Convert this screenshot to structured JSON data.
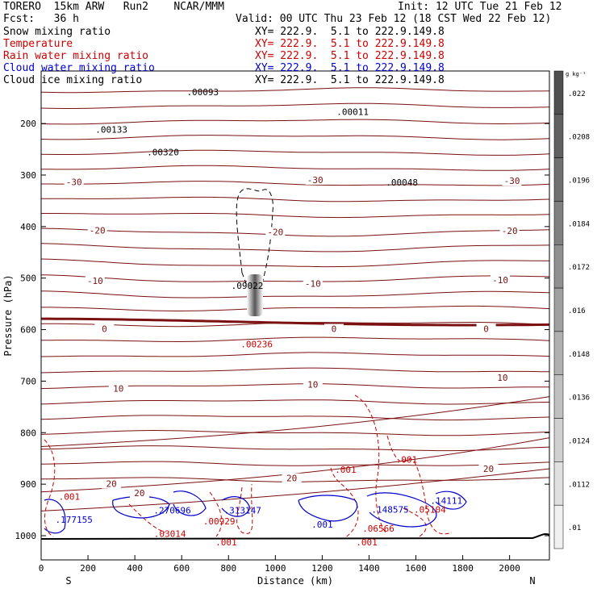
{
  "header": {
    "model_title": "TORERO  15km ARW   Run2    NCAR/MMM",
    "init": "Init: 12 UTC Tue 21 Feb 12",
    "fcst": "Fcst:   36 h",
    "valid": "Valid: 00 UTC Thu 23 Feb 12 (18 CST Wed 22 Feb 12)"
  },
  "legend": [
    {
      "label": "Snow mixing ratio",
      "xy": "",
      "color": "#000000"
    },
    {
      "label": "Temperature",
      "xy": "XY= 222.9.  5.1 to 222.9.149.8",
      "color": "#cc0000"
    },
    {
      "label": "Rain water mixing ratio",
      "xy": "XY= 222.9.  5.1 to 222.9.149.8",
      "color": "#cc0000"
    },
    {
      "label": "Cloud water mixing ratio",
      "xy": "XY= 222.9.  5.1 to 222.9.149.8",
      "color": "#0000cc"
    },
    {
      "label": "Cloud ice mixing ratio",
      "xy": "XY= 222.9.  5.1 to 222.9.149.8",
      "color": "#000000"
    }
  ],
  "snow_xy": "XY= 222.9.  5.1 to 222.9.149.8",
  "chart_data": {
    "type": "cross-section",
    "xlabel": "Distance (km)",
    "ylabel": "Pressure (hPa)",
    "xlim": [
      0,
      2170
    ],
    "ylim": [
      1050,
      100
    ],
    "x_ticks": [
      "0",
      "200",
      "400",
      "600",
      "800",
      "1000",
      "1200",
      "1400",
      "1600",
      "1800",
      "2000"
    ],
    "y_ticks": [
      "200",
      "300",
      "400",
      "500",
      "600",
      "700",
      "800",
      "900",
      "1000"
    ],
    "x_end_labels": {
      "left": "S",
      "right": "N"
    },
    "colorbar": {
      "unit": "g kg⁻¹",
      "ticks": [
        ".022",
        ".0208",
        ".0196",
        ".0184",
        ".0172",
        ".016",
        ".0148",
        ".0136",
        ".0124",
        ".0112",
        ".01"
      ]
    },
    "temperature_labels": [
      {
        "text": "-30",
        "x": 140,
        "p": 318
      },
      {
        "text": "-30",
        "x": 1170,
        "p": 314
      },
      {
        "text": "-30",
        "x": 2010,
        "p": 316
      },
      {
        "text": "-20",
        "x": 240,
        "p": 412
      },
      {
        "text": "-20",
        "x": 2000,
        "p": 413
      },
      {
        "text": "-20",
        "x": 1000,
        "p": 415
      },
      {
        "text": "-10",
        "x": 230,
        "p": 510
      },
      {
        "text": "-10",
        "x": 1160,
        "p": 515
      },
      {
        "text": "-10",
        "x": 1960,
        "p": 508
      },
      {
        "text": "0",
        "x": 270,
        "p": 603
      },
      {
        "text": "0",
        "x": 1250,
        "p": 603
      },
      {
        "text": "0",
        "x": 1900,
        "p": 603
      },
      {
        "text": "10",
        "x": 330,
        "p": 719
      },
      {
        "text": "10",
        "x": 1160,
        "p": 711
      },
      {
        "text": "10",
        "x": 1970,
        "p": 698
      },
      {
        "text": "20",
        "x": 300,
        "p": 904
      },
      {
        "text": "20",
        "x": 420,
        "p": 922
      },
      {
        "text": "20",
        "x": 1070,
        "p": 893
      },
      {
        "text": "20",
        "x": 1910,
        "p": 875
      }
    ],
    "annotations": [
      {
        "text": ".00093",
        "x": 690,
        "p": 145,
        "color": "#000000"
      },
      {
        "text": ".00011",
        "x": 1330,
        "p": 183,
        "color": "#000000"
      },
      {
        "text": ".00133",
        "x": 300,
        "p": 218,
        "color": "#000000"
      },
      {
        "text": ".00320",
        "x": 520,
        "p": 262,
        "color": "#000000"
      },
      {
        "text": ".00048",
        "x": 1540,
        "p": 320,
        "color": "#000000"
      },
      {
        "text": ".09022",
        "x": 880,
        "p": 521,
        "color": "#000000"
      },
      {
        "text": ".00236",
        "x": 920,
        "p": 634,
        "color": "#cc0000"
      },
      {
        "text": ".001",
        "x": 120,
        "p": 930,
        "color": "#cc0000"
      },
      {
        "text": ".001",
        "x": 1300,
        "p": 878,
        "color": "#cc0000"
      },
      {
        "text": ".001",
        "x": 1560,
        "p": 858,
        "color": "#cc0000"
      },
      {
        "text": ".001",
        "x": 790,
        "p": 1019,
        "color": "#cc0000"
      },
      {
        "text": ".001",
        "x": 1390,
        "p": 1019,
        "color": "#cc0000"
      },
      {
        "text": ".001",
        "x": 1200,
        "p": 984,
        "color": "#0000cc"
      },
      {
        "text": ".177155",
        "x": 140,
        "p": 975,
        "color": "#0000cc"
      },
      {
        "text": ".270696",
        "x": 560,
        "p": 957,
        "color": "#0000cc"
      },
      {
        "text": ".313147",
        "x": 860,
        "p": 957,
        "color": "#0000cc"
      },
      {
        "text": ".148575",
        "x": 1490,
        "p": 955,
        "color": "#0000cc"
      },
      {
        "text": ".14111",
        "x": 1730,
        "p": 938,
        "color": "#0000cc"
      },
      {
        "text": ".03014",
        "x": 550,
        "p": 1002,
        "color": "#cc0000"
      },
      {
        "text": ".00929",
        "x": 760,
        "p": 978,
        "color": "#cc0000"
      },
      {
        "text": ".06566",
        "x": 1440,
        "p": 992,
        "color": "#cc0000"
      },
      {
        "text": ".05104",
        "x": 1660,
        "p": 955,
        "color": "#cc0000"
      }
    ]
  }
}
